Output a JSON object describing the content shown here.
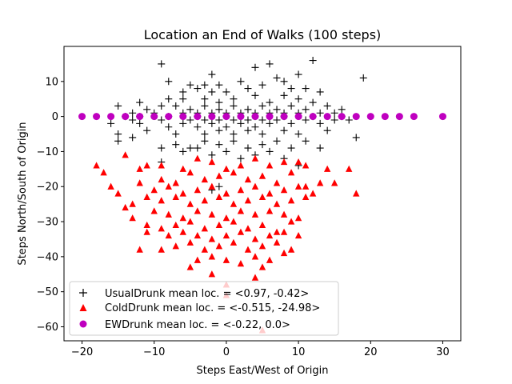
{
  "chart_data": {
    "type": "scatter",
    "title": "Location an End of Walks (100 steps)",
    "xlabel": "Steps East/West of Origin",
    "ylabel": "Steps North/South of Origin",
    "xlim": [
      -22.5,
      32.5
    ],
    "ylim": [
      -64,
      20
    ],
    "xticks": [
      -20,
      -10,
      0,
      10,
      20,
      30
    ],
    "yticks": [
      -60,
      -50,
      -40,
      -30,
      -20,
      -10,
      0,
      10
    ],
    "grid": false,
    "legend_position": "lower-left",
    "series": [
      {
        "name": "UsualDrunk mean loc. = <0.97, -0.42>",
        "marker": "plus",
        "color": "#000000",
        "points": [
          [
            -9,
            15
          ],
          [
            -2,
            12
          ],
          [
            12,
            16
          ],
          [
            19,
            11
          ],
          [
            4,
            14
          ],
          [
            6,
            15
          ],
          [
            10,
            12
          ],
          [
            -8,
            10
          ],
          [
            -5,
            9
          ],
          [
            -3,
            9
          ],
          [
            -1,
            9
          ],
          [
            2,
            10
          ],
          [
            7,
            11
          ],
          [
            8,
            10
          ],
          [
            11,
            8
          ],
          [
            -6,
            7
          ],
          [
            -4,
            8
          ],
          [
            -2,
            7
          ],
          [
            0,
            7
          ],
          [
            3,
            8
          ],
          [
            5,
            9
          ],
          [
            9,
            8
          ],
          [
            13,
            7
          ],
          [
            -12,
            4
          ],
          [
            -8,
            5
          ],
          [
            -6,
            5
          ],
          [
            -3,
            5
          ],
          [
            -1,
            4
          ],
          [
            1,
            5
          ],
          [
            4,
            6
          ],
          [
            6,
            4
          ],
          [
            8,
            6
          ],
          [
            10,
            5
          ],
          [
            12,
            4
          ],
          [
            -15,
            3
          ],
          [
            -11,
            2
          ],
          [
            -9,
            3
          ],
          [
            -7,
            3
          ],
          [
            -5,
            2
          ],
          [
            -3,
            3
          ],
          [
            -1,
            2
          ],
          [
            1,
            3
          ],
          [
            3,
            2
          ],
          [
            5,
            3
          ],
          [
            7,
            2
          ],
          [
            9,
            3
          ],
          [
            11,
            2
          ],
          [
            14,
            3
          ],
          [
            16,
            2
          ],
          [
            -13,
            1
          ],
          [
            -10,
            1
          ],
          [
            -6,
            1
          ],
          [
            -4,
            1
          ],
          [
            -2,
            1
          ],
          [
            0,
            1
          ],
          [
            2,
            1
          ],
          [
            4,
            1
          ],
          [
            6,
            1
          ],
          [
            8,
            1
          ],
          [
            10,
            1
          ],
          [
            13,
            1
          ],
          [
            15,
            1
          ],
          [
            -14,
            0
          ],
          [
            -12,
            0
          ],
          [
            -8,
            0
          ],
          [
            -4,
            0
          ],
          [
            0,
            0
          ],
          [
            4,
            0
          ],
          [
            8,
            0
          ],
          [
            12,
            0
          ],
          [
            16,
            0
          ],
          [
            -13,
            -1
          ],
          [
            -9,
            -1
          ],
          [
            -5,
            -1
          ],
          [
            -3,
            -1
          ],
          [
            -1,
            -1
          ],
          [
            1,
            -1
          ],
          [
            3,
            -1
          ],
          [
            5,
            -1
          ],
          [
            7,
            -1
          ],
          [
            11,
            -1
          ],
          [
            15,
            -1
          ],
          [
            -16,
            -2
          ],
          [
            -12,
            -2
          ],
          [
            -8,
            -3
          ],
          [
            -6,
            -2
          ],
          [
            -4,
            -3
          ],
          [
            -2,
            -2
          ],
          [
            0,
            -3
          ],
          [
            2,
            -2
          ],
          [
            4,
            -3
          ],
          [
            6,
            -2
          ],
          [
            9,
            -2
          ],
          [
            13,
            -2
          ],
          [
            17,
            -1
          ],
          [
            -15,
            -5
          ],
          [
            -11,
            -4
          ],
          [
            -7,
            -5
          ],
          [
            -3,
            -5
          ],
          [
            -1,
            -4
          ],
          [
            1,
            -5
          ],
          [
            3,
            -4
          ],
          [
            5,
            -5
          ],
          [
            8,
            -4
          ],
          [
            10,
            -5
          ],
          [
            14,
            -4
          ],
          [
            -15,
            -7
          ],
          [
            -13,
            -6
          ],
          [
            -9,
            -9
          ],
          [
            -7,
            -8
          ],
          [
            -5,
            -9
          ],
          [
            -3,
            -7
          ],
          [
            -1,
            -8
          ],
          [
            1,
            -7
          ],
          [
            3,
            -9
          ],
          [
            5,
            -8
          ],
          [
            7,
            -7
          ],
          [
            9,
            -9
          ],
          [
            11,
            -7
          ],
          [
            13,
            -9
          ],
          [
            18,
            -6
          ],
          [
            -9,
            -13
          ],
          [
            -6,
            -10
          ],
          [
            -4,
            -9
          ],
          [
            -2,
            -11
          ],
          [
            0,
            -10
          ],
          [
            2,
            -12
          ],
          [
            4,
            -11
          ],
          [
            6,
            -10
          ],
          [
            8,
            -12
          ],
          [
            10,
            -14
          ],
          [
            -2,
            -21
          ],
          [
            -1,
            -20
          ]
        ]
      },
      {
        "name": "ColdDrunk mean loc. = <-0.515, -24.98>",
        "marker": "triangle",
        "color": "#ff0000",
        "points": [
          [
            -18,
            -14
          ],
          [
            -17,
            -16
          ],
          [
            -14,
            -11
          ],
          [
            -12,
            -15
          ],
          [
            -9,
            -14
          ],
          [
            -6,
            -15
          ],
          [
            -4,
            -12
          ],
          [
            -2,
            -13
          ],
          [
            0,
            -15
          ],
          [
            2,
            -14
          ],
          [
            4,
            -12
          ],
          [
            6,
            -14
          ],
          [
            8,
            -13
          ],
          [
            10,
            -13
          ],
          [
            11,
            -14
          ],
          [
            14,
            -15
          ],
          [
            15,
            -19
          ],
          [
            17,
            -15
          ],
          [
            18,
            -22
          ],
          [
            -11,
            -14
          ],
          [
            -9,
            -18
          ],
          [
            -7,
            -19
          ],
          [
            -5,
            -16
          ],
          [
            -3,
            -18
          ],
          [
            -1,
            -17
          ],
          [
            1,
            -16
          ],
          [
            3,
            -18
          ],
          [
            5,
            -17
          ],
          [
            7,
            -19
          ],
          [
            9,
            -16
          ],
          [
            11,
            -20
          ],
          [
            13,
            -19
          ],
          [
            -16,
            -20
          ],
          [
            -12,
            -19
          ],
          [
            -10,
            -21
          ],
          [
            -8,
            -20
          ],
          [
            -6,
            -22
          ],
          [
            -4,
            -21
          ],
          [
            -2,
            -20
          ],
          [
            0,
            -22
          ],
          [
            2,
            -21
          ],
          [
            4,
            -20
          ],
          [
            6,
            -22
          ],
          [
            8,
            -21
          ],
          [
            10,
            -20
          ],
          [
            12,
            -22
          ],
          [
            -15,
            -22
          ],
          [
            -13,
            -25
          ],
          [
            -11,
            -23
          ],
          [
            -9,
            -24
          ],
          [
            -7,
            -23
          ],
          [
            -5,
            -25
          ],
          [
            -3,
            -24
          ],
          [
            -1,
            -23
          ],
          [
            1,
            -25
          ],
          [
            3,
            -24
          ],
          [
            5,
            -23
          ],
          [
            7,
            -25
          ],
          [
            9,
            -24
          ],
          [
            11,
            -23
          ],
          [
            -13,
            -29
          ],
          [
            -10,
            -27
          ],
          [
            -8,
            -28
          ],
          [
            -6,
            -29
          ],
          [
            -4,
            -27
          ],
          [
            -2,
            -28
          ],
          [
            0,
            -29
          ],
          [
            2,
            -27
          ],
          [
            4,
            -28
          ],
          [
            6,
            -27
          ],
          [
            8,
            -28
          ],
          [
            10,
            -29
          ],
          [
            -14,
            -26
          ],
          [
            -11,
            -31
          ],
          [
            -9,
            -32
          ],
          [
            -7,
            -31
          ],
          [
            -5,
            -30
          ],
          [
            -3,
            -32
          ],
          [
            -1,
            -31
          ],
          [
            1,
            -30
          ],
          [
            3,
            -32
          ],
          [
            5,
            -31
          ],
          [
            7,
            -33
          ],
          [
            9,
            -30
          ],
          [
            -11,
            -33
          ],
          [
            -8,
            -34
          ],
          [
            -6,
            -33
          ],
          [
            -4,
            -34
          ],
          [
            -2,
            -35
          ],
          [
            0,
            -34
          ],
          [
            2,
            -33
          ],
          [
            4,
            -35
          ],
          [
            6,
            -34
          ],
          [
            8,
            -33
          ],
          [
            10,
            -34
          ],
          [
            -12,
            -38
          ],
          [
            -9,
            -38
          ],
          [
            -7,
            -37
          ],
          [
            -5,
            -36
          ],
          [
            -3,
            -38
          ],
          [
            -1,
            -37
          ],
          [
            1,
            -36
          ],
          [
            3,
            -38
          ],
          [
            5,
            -37
          ],
          [
            7,
            -36
          ],
          [
            9,
            -38
          ],
          [
            -4,
            -41
          ],
          [
            -2,
            -40
          ],
          [
            0,
            -41
          ],
          [
            2,
            -42
          ],
          [
            4,
            -40
          ],
          [
            6,
            -41
          ],
          [
            8,
            -39
          ],
          [
            -5,
            -43
          ],
          [
            5,
            -43
          ],
          [
            -2,
            -45
          ],
          [
            4,
            -46
          ],
          [
            0,
            -48
          ],
          [
            0,
            -51
          ],
          [
            5,
            -61
          ]
        ]
      },
      {
        "name": "EWDrunk mean loc. = <-0.22, 0.0>",
        "marker": "circle",
        "color": "#bf00bf",
        "points": [
          [
            -20,
            0
          ],
          [
            -18,
            0
          ],
          [
            -16,
            0
          ],
          [
            -14,
            0
          ],
          [
            -12,
            0
          ],
          [
            -10,
            0
          ],
          [
            -8,
            0
          ],
          [
            -6,
            0
          ],
          [
            -4,
            0
          ],
          [
            -2,
            0
          ],
          [
            0,
            0
          ],
          [
            2,
            0
          ],
          [
            4,
            0
          ],
          [
            6,
            0
          ],
          [
            8,
            0
          ],
          [
            10,
            0
          ],
          [
            12,
            0
          ],
          [
            14,
            0
          ],
          [
            16,
            0
          ],
          [
            18,
            0
          ],
          [
            20,
            0
          ],
          [
            22,
            0
          ],
          [
            24,
            0
          ],
          [
            26,
            0
          ],
          [
            30,
            0
          ]
        ]
      }
    ]
  }
}
